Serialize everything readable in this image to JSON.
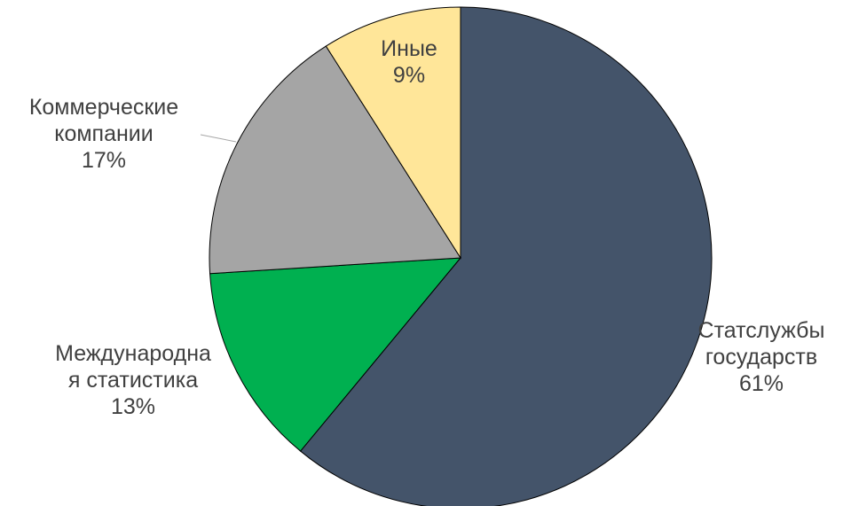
{
  "chart_data": {
    "type": "pie",
    "title": "",
    "slices": [
      {
        "name": "Статслужбы государств",
        "label_lines": [
          "Статслужбы",
          "государств",
          "61%"
        ],
        "value": 61,
        "color": "#44546a"
      },
      {
        "name": "Международная статистика",
        "label_lines": [
          "Международна",
          "я статистика",
          "13%"
        ],
        "value": 13,
        "color": "#00b050"
      },
      {
        "name": "Коммерческие компании",
        "label_lines": [
          "Коммерческие",
          "компании",
          "17%"
        ],
        "value": 17,
        "color": "#a5a5a5"
      },
      {
        "name": "Иные",
        "label_lines": [
          "Иные",
          "9%"
        ],
        "value": 9,
        "color": "#ffe699"
      }
    ],
    "start_angle": "12 o'clock",
    "direction": "clockwise",
    "legend": "none"
  }
}
